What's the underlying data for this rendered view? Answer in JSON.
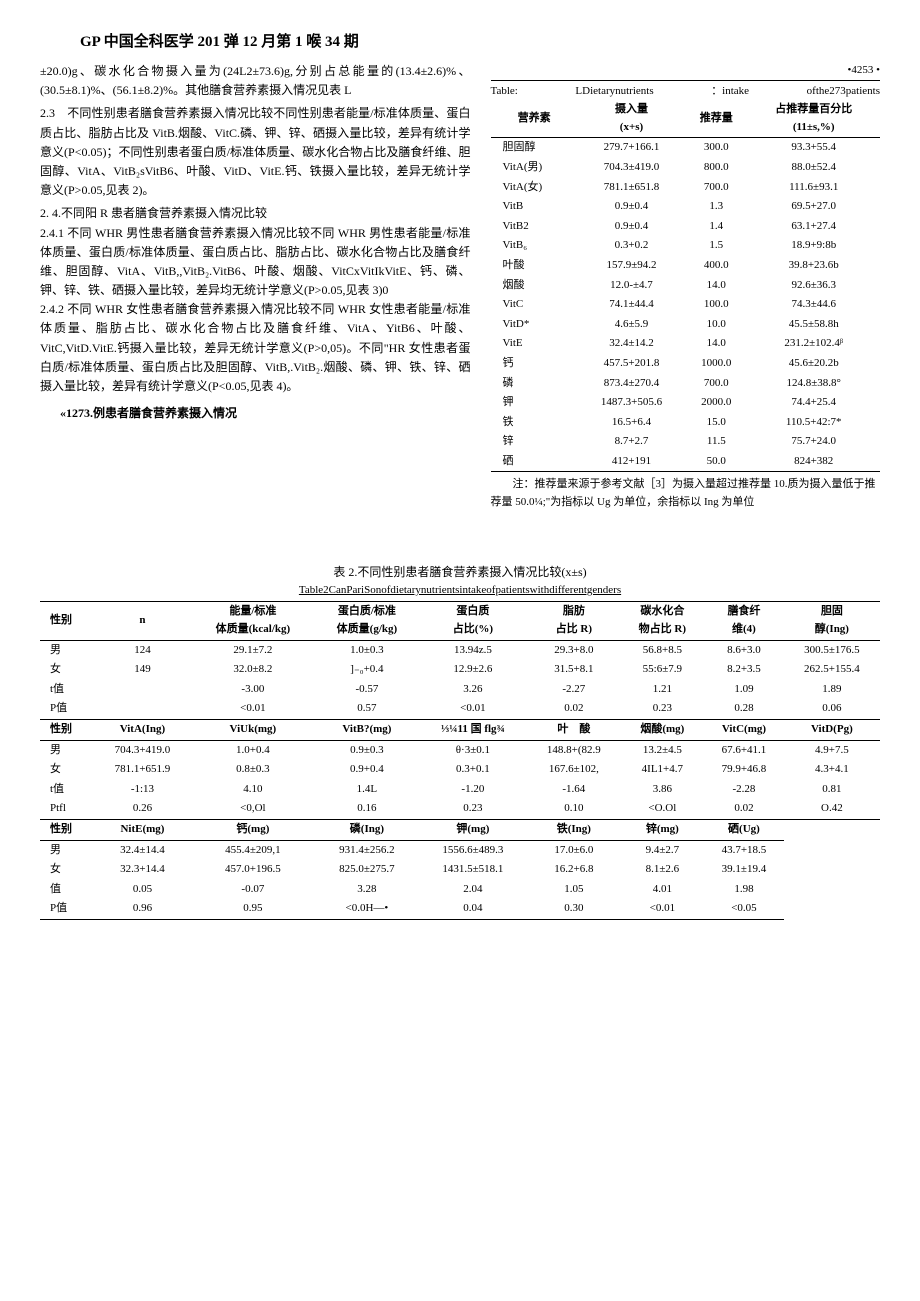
{
  "header": "GP 中国全科医学 201 弹 12 月第 1 喉 34 期",
  "page_marker": "•4253 •",
  "body_text": {
    "p1": "±20.0)g、碳水化合物摄入量为(24L2±73.6)g,分别占总能量的(13.4±2.6)%、(30.5±8.1)%、(56.1±8.2)%。其他膳食营养素摄入情况见表 L",
    "s23_title": "2.3　不同性别患者膳食营养素摄入情况比较",
    "s23_body": "不同性别患者能量/标准体质量、蛋白质占比、脂肪占比及 VitB.烟酸、VitC.磷、钾、锌、硒摄入量比较，差异有统计学意义(P<0.05)；不同性别患者蛋白质/标准体质量、碳水化合物占比及膳食纤维、胆固醇、VitA、VitB₂sVitB6、叶酸、VitD、VitE.钙、铁摄入量比较，差异无统计学意义(P>0.05,见表 2)。",
    "s24_title": "2. 4.不同阳 R 患者膳食营养素摄入情况比较",
    "s241_title": "2.4.1 不同 WHR 男性患者膳食营养素摄入情况比较",
    "s241_body": "不同 WHR 男性患者能量/标准体质量、蛋白质/标准体质量、蛋白质占比、脂肪占比、碳水化合物占比及膳食纤维、胆固醇、VitA、VitB,,VitB₂.VitB6、叶酸、烟酸、VitCxVitIkVitE、钙、磷、钾、锌、铁、硒摄入量比较，差异均无统计学意义(P>0.05,见表 3)0",
    "s242_title": "2.4.2 不同 WHR 女性患者膳食营养素摄入情况比较",
    "s242_body": "不同 WHR 女性患者能量/标准体质量、脂肪占比、碳水化合物占比及膳食纤维、VitA、YitB6、叶酸、VitC,VitD.VitE.钙摄入量比较，差异无统计学意义(P>0,05)。不同\"HR 女性患者蛋白质/标准体质量、蛋白质占比及胆固醇、VitB,.VitB₂.烟酸、磷、钾、铁、锌、硒摄入量比较，差异有统计学意义(P<0.05,见表 4)。",
    "tbl1_below": "«1273.例患者膳食营养素摄入情况"
  },
  "table1": {
    "caption_parts": [
      "Table:",
      "LDietarynutrients",
      "：intake",
      "ofthe273patients"
    ],
    "headers": [
      "营养素",
      "摄入量\n(x+s)",
      "推荐量",
      "占推荐量百分比\n(11±s,%)"
    ],
    "rows": [
      [
        "胆固醇",
        "279.7+166.1",
        "300.0",
        "93.3+55.4"
      ],
      [
        "VitA(男)",
        "704.3±419.0",
        "800.0",
        "88.0±52.4"
      ],
      [
        "VitA(女)",
        "781.1±651.8",
        "700.0",
        "111.6±93.1"
      ],
      [
        "VitB",
        "0.9±0.4",
        "1.3",
        "69.5+27.0"
      ],
      [
        "VitB2",
        "0.9±0.4",
        "1.4",
        "63.1+27.4"
      ],
      [
        "VitB₆",
        "0.3+0.2",
        "1.5",
        "18.9+9:8b"
      ],
      [
        "叶酸",
        "157.9±94.2",
        "400.0",
        "39.8+23.6b"
      ],
      [
        "烟酸",
        "12.0-±4.7",
        "14.0",
        "92.6±36.3"
      ],
      [
        "VitC",
        "74.1±44.4",
        "100.0",
        "74.3±44.6"
      ],
      [
        "VitD*",
        "4.6±5.9",
        "10.0",
        "45.5±58.8h"
      ],
      [
        "VitE",
        "32.4±14.2",
        "14.0",
        "231.2±102.4ᵝ"
      ],
      [
        "钙",
        "457.5+201.8",
        "1000.0",
        "45.6±20.2b"
      ],
      [
        "磷",
        "873.4±270.4",
        "700.0",
        "124.8±38.8°"
      ],
      [
        "钾",
        "1487.3+505.6",
        "2000.0",
        "74.4+25.4"
      ],
      [
        "铁",
        "16.5+6.4",
        "15.0",
        "110.5+42:7*"
      ],
      [
        "锌",
        "8.7+2.7",
        "11.5",
        "75.7+24.0"
      ],
      [
        "硒",
        "412+191",
        "50.0",
        "824+382"
      ]
    ],
    "note": "注：推荐量来源于参考文献［3］为摄入量超过推荐量 10.质为摄入量低于推荐量 50.0¼;\"为指标以 Ug 为单位，余指标以 Ing 为单位"
  },
  "table2": {
    "title": "表 2.不同性别患者膳食营养素摄入情况比较(x±s)",
    "subtitle": "Table2CanPariSonofdietarynutrientsintakeofpatientswithdifferentgenders",
    "block1": {
      "headers": [
        "性别",
        "n",
        "能量/标准\n体质量(kcal/kg)",
        "蛋白质/标准\n体质量(g/kg)",
        "蛋白质\n占比(%)",
        "脂肪\n占比 R)",
        "碳水化合\n物占比 R)",
        "膳食纤\n维(4)",
        "胆固\n醇(Ing)"
      ],
      "rows": [
        [
          "男",
          "124",
          "29.1±7.2",
          "1.0±0.3",
          "13.94z.5",
          "29.3+8.0",
          "56.8+8.5",
          "8.6+3.0",
          "300.5±176.5"
        ],
        [
          "女",
          "149",
          "32.0±8.2",
          "]₋₀+0.4",
          "12.9±2.6",
          "31.5+8.1",
          "55:6±7.9",
          "8.2+3.5",
          "262.5+155.4"
        ],
        [
          "t值",
          "",
          "-3.00",
          "-0.57",
          "3.26",
          "-2.27",
          "1.21",
          "1.09",
          "1.89"
        ],
        [
          "P值",
          "",
          "<0.01",
          "0.57",
          "<0.01",
          "0.02",
          "0.23",
          "0.28",
          "0.06"
        ]
      ]
    },
    "block2": {
      "headers": [
        "性别",
        "VitA(Ing)",
        "ViUk(mg)",
        "VitB?(mg)",
        "⅓¼11 国 flg¾",
        "叶　酸",
        "烟酸(mg)",
        "VitC(mg)",
        "VitD(Pg)"
      ],
      "rows": [
        [
          "男",
          "704.3+419.0",
          "1.0+0.4",
          "0.9±0.3",
          "θ·3±0.1",
          "148.8+(82.9",
          "13.2±4.5",
          "67.6+41.1",
          "4.9+7.5"
        ],
        [
          "女",
          "781.1+651.9",
          "0.8±0.3",
          "0.9+0.4",
          "0.3+0.1",
          "167.6±102,",
          "4IL1+4.7",
          "79.9+46.8",
          "4.3+4.1"
        ],
        [
          "t值",
          "-1:13",
          "4.10",
          "1.4L",
          "-1.20",
          "-1.64",
          "3.86",
          "-2.28",
          "0.81"
        ],
        [
          "Ptfl",
          "0.26",
          "<0,Ol",
          "0.16",
          "0.23",
          "0.10",
          "<O.Ol",
          "0.02",
          "O.42"
        ]
      ]
    },
    "block3": {
      "headers": [
        "性别",
        "NitE(mg)",
        "钙(mg)",
        "磷(Ing)",
        "钾(mg)",
        "铁(Ing)",
        "锌(mg)",
        "硒(Ug)"
      ],
      "rows": [
        [
          "男",
          "32.4±14.4",
          "455.4±209,1",
          "931.4±256.2",
          "1556.6±489.3",
          "17.0±6.0",
          "9.4±2.7",
          "43.7+18.5"
        ],
        [
          "女",
          "32.3+14.4",
          "457.0+196.5",
          "825.0±275.7",
          "1431.5±518.1",
          "16.2+6.8",
          "8.1±2.6",
          "39.1±19.4"
        ],
        [
          "值",
          "0.05",
          "-0.07",
          "3.28",
          "2.04",
          "1.05",
          "4.01",
          "1.98"
        ],
        [
          "P值",
          "0.96",
          "0.95",
          "<0.0H—•",
          "0.04",
          "0.30",
          "<0.01",
          "<0.05"
        ]
      ]
    }
  }
}
